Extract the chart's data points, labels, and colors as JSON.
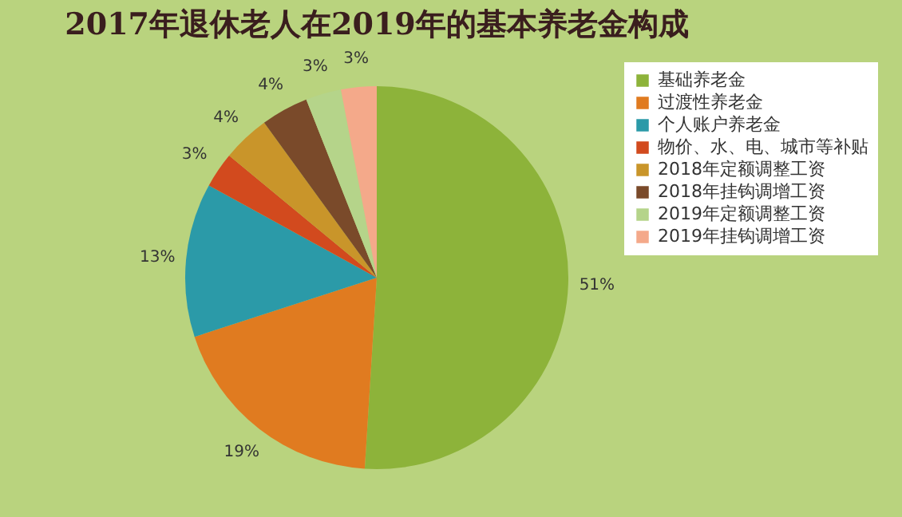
{
  "chart_data": {
    "type": "pie",
    "title": "2017年退休老人在2019年的基本养老金构成",
    "categories": [
      "基础养老金",
      "过渡性养老金",
      "个人账户养老金",
      "物价、水、电、城市等补贴",
      "2018年定额调整工资",
      "2018年挂钩调增工资",
      "2019年定额调整工资",
      "2019年挂钩调增工资"
    ],
    "values": [
      51,
      19,
      13,
      3,
      4,
      4,
      3,
      3
    ],
    "colors": [
      "#8db33a",
      "#e07b20",
      "#2b9aa8",
      "#d24a1e",
      "#c9952a",
      "#7a4a2a",
      "#b5d48a",
      "#f4a98a"
    ],
    "value_labels": [
      "51%",
      "19%",
      "13%",
      "3%",
      "4%",
      "4%",
      "3%",
      "3%"
    ],
    "legend": "right"
  }
}
